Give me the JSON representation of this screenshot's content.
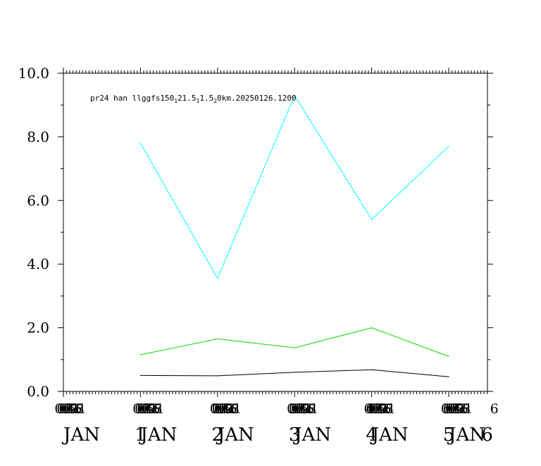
{
  "chart_data": {
    "type": "line",
    "title_parts": [
      {
        "text": "pr24 han llggfs150"
      },
      {
        "text": "1",
        "sub": true
      },
      {
        "text": "21.5"
      },
      {
        "text": "1",
        "sub": true
      },
      {
        "text": "1.5"
      },
      {
        "text": "2",
        "sub": true
      },
      {
        "text": "0km.20250126.1200"
      }
    ],
    "ylim": [
      0,
      10
    ],
    "yticks": [
      "0.0",
      "2.0",
      "4.0",
      "6.0",
      "8.0",
      "10.0"
    ],
    "ytick_values": [
      0,
      2,
      4,
      6,
      8,
      10
    ],
    "xlim": [
      0,
      5.5
    ],
    "xticks": [
      {
        "x": 0,
        "overprint": [
          "00",
          "03",
          "06",
          "09",
          "12",
          "15",
          "18",
          "21"
        ],
        "month": "JAN"
      },
      {
        "x": 1,
        "overprint": [
          "1",
          "00",
          "03",
          "06",
          "09",
          "12",
          "15",
          "18",
          "21"
        ],
        "month": "JAN"
      },
      {
        "x": 2,
        "overprint": [
          "2",
          "00",
          "03",
          "06",
          "09",
          "12",
          "15",
          "18",
          "21"
        ],
        "month": "JAN"
      },
      {
        "x": 3,
        "overprint": [
          "3",
          "00",
          "03",
          "06",
          "09",
          "12",
          "15",
          "18",
          "21"
        ],
        "month": "JAN"
      },
      {
        "x": 4,
        "overprint": [
          "4",
          "00",
          "03",
          "06",
          "09",
          "12",
          "15",
          "18",
          "21"
        ],
        "month": "JAN"
      },
      {
        "x": 5,
        "overprint": [
          "5",
          "00",
          "03",
          "06",
          "09",
          "12",
          "15",
          "18",
          "21"
        ],
        "month": "JAN"
      },
      {
        "x": 5.5,
        "overprint": [
          "6"
        ],
        "month": ""
      }
    ],
    "grid": false,
    "series": [
      {
        "color": "#00ffff",
        "x": [
          1,
          2,
          3,
          4,
          5
        ],
        "values": [
          7.8,
          3.55,
          9.3,
          5.4,
          7.7
        ]
      },
      {
        "color": "#00dd00",
        "x": [
          1,
          2,
          3,
          4,
          5
        ],
        "values": [
          1.15,
          1.65,
          1.37,
          2.0,
          1.1
        ]
      },
      {
        "color": "#000000",
        "x": [
          1,
          2,
          3,
          4,
          5
        ],
        "values": [
          0.5,
          0.49,
          0.6,
          0.68,
          0.46
        ]
      }
    ]
  }
}
